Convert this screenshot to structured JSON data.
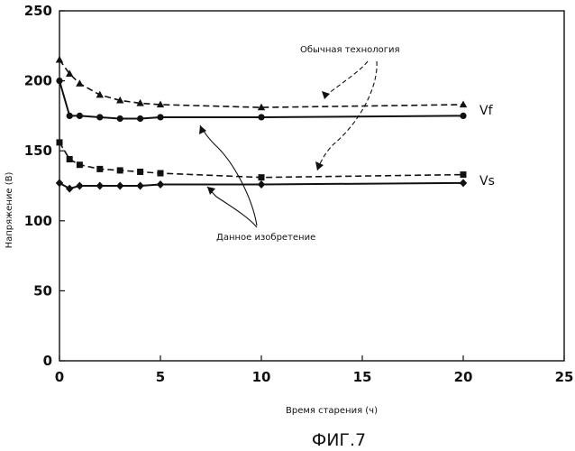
{
  "figure_caption": "ФИГ.7",
  "annotations": {
    "conventional": "Обычная технология",
    "invention": "Данное изобретение"
  },
  "chart_data": {
    "type": "line",
    "title": "",
    "xlabel": "Время старения (ч)",
    "ylabel": "Напряжение (В)",
    "xlim": [
      0,
      25
    ],
    "ylim": [
      0,
      250
    ],
    "xticks": [
      0,
      5,
      10,
      15,
      20,
      25
    ],
    "yticks": [
      0,
      50,
      100,
      150,
      200,
      250
    ],
    "grid": false,
    "series": [
      {
        "name": "Vf",
        "group": "conventional",
        "line": "dashed",
        "marker": "triangle",
        "x": [
          0,
          0.5,
          1,
          2,
          3,
          4,
          5,
          10,
          20
        ],
        "y": [
          215,
          205,
          198,
          190,
          186,
          184,
          183,
          181,
          183
        ]
      },
      {
        "name": "Vf",
        "group": "invention",
        "line": "solid",
        "marker": "circle",
        "x": [
          0,
          0.5,
          1,
          2,
          3,
          4,
          5,
          10,
          20
        ],
        "y": [
          200,
          175,
          175,
          174,
          173,
          173,
          174,
          174,
          175
        ]
      },
      {
        "name": "Vs",
        "group": "conventional",
        "line": "dashed",
        "marker": "square",
        "x": [
          0,
          0.5,
          1,
          2,
          3,
          4,
          5,
          10,
          20
        ],
        "y": [
          156,
          144,
          140,
          137,
          136,
          135,
          134,
          131,
          133
        ]
      },
      {
        "name": "Vs",
        "group": "invention",
        "line": "solid",
        "marker": "diamond",
        "x": [
          0,
          0.5,
          1,
          2,
          3,
          4,
          5,
          10,
          20
        ],
        "y": [
          127,
          123,
          125,
          125,
          125,
          125,
          126,
          126,
          127
        ]
      }
    ]
  }
}
